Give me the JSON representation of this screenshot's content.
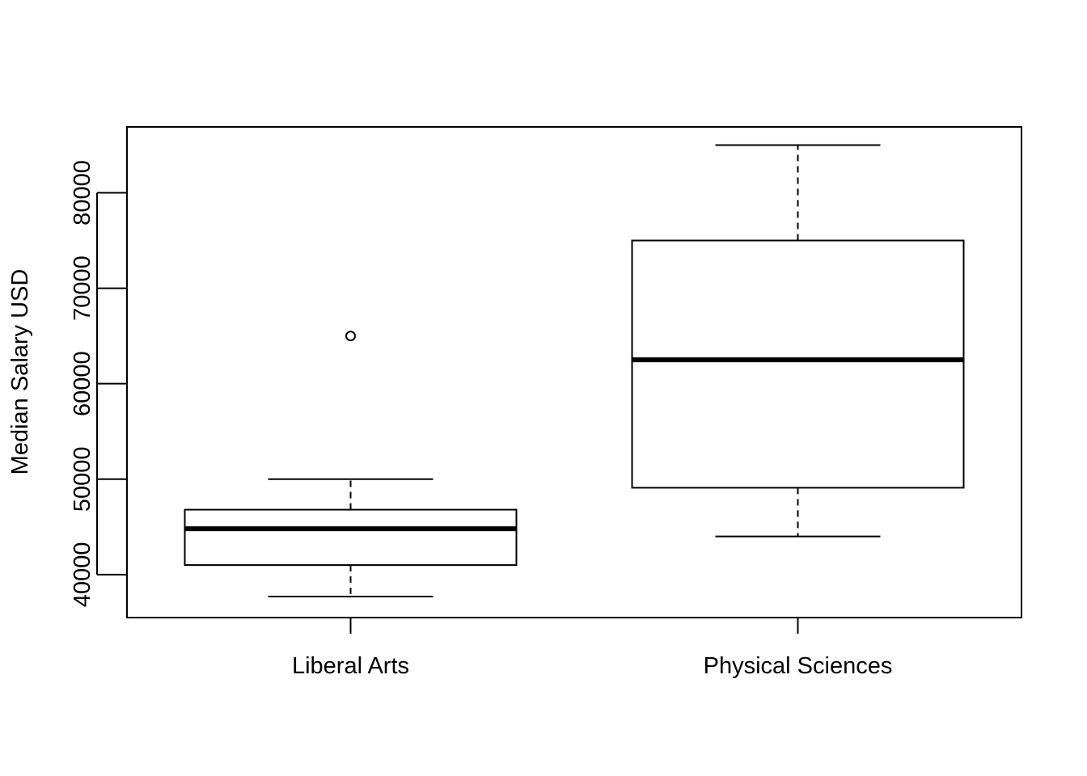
{
  "chart_data": {
    "type": "boxplot",
    "title": "",
    "xlabel": "",
    "ylabel": "Median Salary USD",
    "ylim": [
      35500,
      86900
    ],
    "yticks": [
      40000,
      50000,
      60000,
      70000,
      80000
    ],
    "categories": [
      "Liberal Arts",
      "Physical Sciences"
    ],
    "boxes": [
      {
        "category": "Liberal Arts",
        "whisker_low": 37700,
        "q1": 41000,
        "median": 44800,
        "q3": 46800,
        "whisker_high": 50000,
        "outliers": [
          65000
        ]
      },
      {
        "category": "Physical Sciences",
        "whisker_low": 44000,
        "q1": 49100,
        "median": 62500,
        "q3": 75000,
        "whisker_high": 85000,
        "outliers": []
      }
    ],
    "grid": false,
    "legend": "none"
  }
}
